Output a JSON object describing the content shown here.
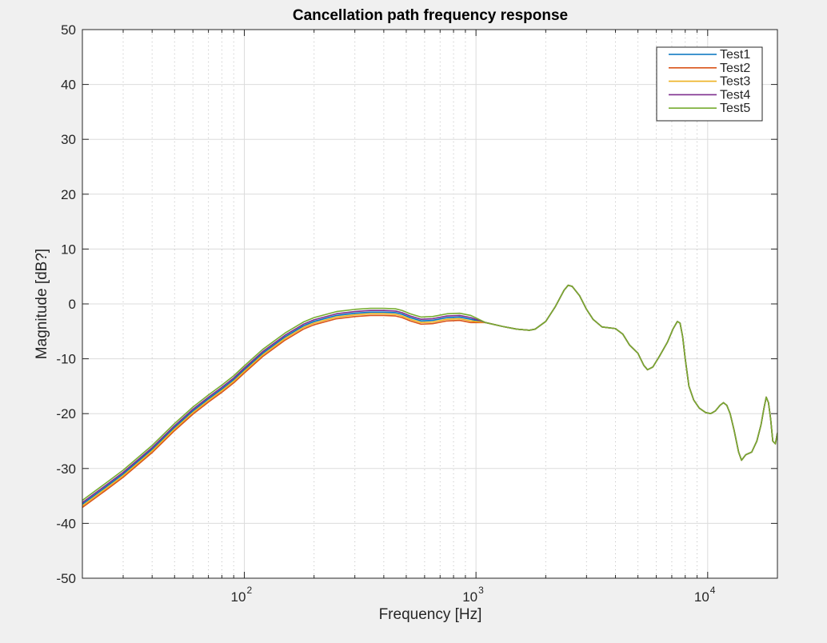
{
  "colors": {
    "figure_bg": "#f0f0f0",
    "axes_bg": "#ffffff",
    "axis": "#262626",
    "grid_major": "#dcdcdc",
    "grid_minor": "#bdbdbd"
  },
  "chart_data": {
    "type": "line",
    "title": "Cancellation path frequency response",
    "xlabel": "Frequency [Hz]",
    "ylabel": "Magnitude [dB?]",
    "xscale": "log",
    "xlim": [
      20,
      20000
    ],
    "ylim": [
      -50,
      50
    ],
    "yticks": [
      -50,
      -40,
      -30,
      -20,
      -10,
      0,
      10,
      20,
      30,
      40,
      50
    ],
    "ytick_labels": [
      "-50",
      "-40",
      "-30",
      "-20",
      "-10",
      "0",
      "10",
      "20",
      "30",
      "40",
      "50"
    ],
    "xticks": [
      100,
      1000,
      10000
    ],
    "xtick_bases": [
      "10",
      "10",
      "10"
    ],
    "xtick_exponents": [
      "2",
      "3",
      "4"
    ],
    "grid": true,
    "minor_grid": true,
    "legend_position": "top-right",
    "x": [
      20,
      25,
      30,
      40,
      50,
      60,
      70,
      80,
      90,
      100,
      120,
      150,
      180,
      200,
      250,
      300,
      350,
      400,
      450,
      480,
      520,
      580,
      650,
      750,
      850,
      950,
      1100,
      1300,
      1500,
      1700,
      1800,
      2000,
      2200,
      2400,
      2500,
      2600,
      2800,
      3000,
      3200,
      3500,
      4000,
      4300,
      4600,
      5000,
      5300,
      5500,
      5800,
      6200,
      6700,
      7100,
      7400,
      7600,
      7800,
      8000,
      8300,
      8700,
      9200,
      9800,
      10300,
      10800,
      11300,
      11700,
      12100,
      12500,
      13000,
      13600,
      14000,
      14600,
      15500,
      16300,
      17000,
      17500,
      17900,
      18300,
      18700,
      19100,
      19600,
      20000
    ],
    "series": [
      {
        "name": "Test1",
        "color": "#0072bd",
        "offset": 0.0,
        "y": [
          -36.5,
          -33.5,
          -31,
          -26.5,
          -22.5,
          -19.5,
          -17.3,
          -15.5,
          -13.8,
          -12,
          -9,
          -6,
          -4,
          -3.2,
          -2.1,
          -1.7,
          -1.5,
          -1.5,
          -1.6,
          -1.9,
          -2.5,
          -3.1,
          -3,
          -2.5,
          -2.4,
          -2.8,
          -3.4,
          -4.1,
          -4.6,
          -4.8,
          -4.6,
          -3.2,
          -0.5,
          2.5,
          3.4,
          3.2,
          1.5,
          -1,
          -2.8,
          -4.2,
          -4.5,
          -5.5,
          -7.5,
          -9,
          -11.2,
          -12,
          -11.5,
          -9.5,
          -7,
          -4.5,
          -3.2,
          -3.5,
          -6,
          -10,
          -15,
          -17.5,
          -19,
          -19.8,
          -20,
          -19.5,
          -18.5,
          -18,
          -18.5,
          -20,
          -23,
          -27,
          -28.5,
          -27.5,
          -27,
          -25,
          -22,
          -19,
          -17,
          -18,
          -21,
          -25,
          -25.5,
          -23.5
        ]
      },
      {
        "name": "Test2",
        "color": "#d95319",
        "offset": -0.6,
        "y": [
          -36.5,
          -33.5,
          -31,
          -26.5,
          -22.5,
          -19.5,
          -17.3,
          -15.5,
          -13.8,
          -12,
          -9,
          -6,
          -4,
          -3.2,
          -2.1,
          -1.7,
          -1.5,
          -1.5,
          -1.6,
          -1.9,
          -2.5,
          -3.1,
          -3,
          -2.5,
          -2.4,
          -2.8,
          -3.4,
          -4.1,
          -4.6,
          -4.8,
          -4.6,
          -3.2,
          -0.5,
          2.5,
          3.4,
          3.2,
          1.5,
          -1,
          -2.8,
          -4.2,
          -4.5,
          -5.5,
          -7.5,
          -9,
          -11.2,
          -12,
          -11.5,
          -9.5,
          -7,
          -4.5,
          -3.2,
          -3.5,
          -6,
          -10,
          -15,
          -17.5,
          -19,
          -19.8,
          -20,
          -19.5,
          -18.5,
          -18,
          -18.5,
          -20,
          -23,
          -27,
          -28.5,
          -27.5,
          -27,
          -25,
          -22,
          -19,
          -17,
          -18,
          -21,
          -25,
          -25.5,
          -23.5
        ]
      },
      {
        "name": "Test3",
        "color": "#edb120",
        "offset": -0.3,
        "y": [
          -36.5,
          -33.5,
          -31,
          -26.5,
          -22.5,
          -19.5,
          -17.3,
          -15.5,
          -13.8,
          -12,
          -9,
          -6,
          -4,
          -3.2,
          -2.1,
          -1.7,
          -1.5,
          -1.5,
          -1.6,
          -1.9,
          -2.5,
          -3.1,
          -3,
          -2.5,
          -2.4,
          -2.8,
          -3.4,
          -4.1,
          -4.6,
          -4.8,
          -4.6,
          -3.2,
          -0.5,
          2.5,
          3.4,
          3.2,
          1.5,
          -1,
          -2.8,
          -4.2,
          -4.5,
          -5.5,
          -7.5,
          -9,
          -11.2,
          -12,
          -11.5,
          -9.5,
          -7,
          -4.5,
          -3.2,
          -3.5,
          -6,
          -10,
          -15,
          -17.5,
          -19,
          -19.8,
          -20,
          -19.5,
          -18.5,
          -18,
          -18.5,
          -20,
          -23,
          -27,
          -28.5,
          -27.5,
          -27,
          -25,
          -22,
          -19,
          -17,
          -18,
          -21,
          -25,
          -25.5,
          -23.5
        ]
      },
      {
        "name": "Test4",
        "color": "#7e2f8e",
        "offset": 0.3,
        "y": [
          -36.5,
          -33.5,
          -31,
          -26.5,
          -22.5,
          -19.5,
          -17.3,
          -15.5,
          -13.8,
          -12,
          -9,
          -6,
          -4,
          -3.2,
          -2.1,
          -1.7,
          -1.5,
          -1.5,
          -1.6,
          -1.9,
          -2.5,
          -3.1,
          -3,
          -2.5,
          -2.4,
          -2.8,
          -3.4,
          -4.1,
          -4.6,
          -4.8,
          -4.6,
          -3.2,
          -0.5,
          2.5,
          3.4,
          3.2,
          1.5,
          -1,
          -2.8,
          -4.2,
          -4.5,
          -5.5,
          -7.5,
          -9,
          -11.2,
          -12,
          -11.5,
          -9.5,
          -7,
          -4.5,
          -3.2,
          -3.5,
          -6,
          -10,
          -15,
          -17.5,
          -19,
          -19.8,
          -20,
          -19.5,
          -18.5,
          -18,
          -18.5,
          -20,
          -23,
          -27,
          -28.5,
          -27.5,
          -27,
          -25,
          -22,
          -19,
          -17,
          -18,
          -21,
          -25,
          -25.5,
          -23.5
        ]
      },
      {
        "name": "Test5",
        "color": "#77ac30",
        "offset": 0.7,
        "y": [
          -36.5,
          -33.5,
          -31,
          -26.5,
          -22.5,
          -19.5,
          -17.3,
          -15.5,
          -13.8,
          -12,
          -9,
          -6,
          -4,
          -3.2,
          -2.1,
          -1.7,
          -1.5,
          -1.5,
          -1.6,
          -1.9,
          -2.5,
          -3.1,
          -3,
          -2.5,
          -2.4,
          -2.8,
          -3.4,
          -4.1,
          -4.6,
          -4.8,
          -4.6,
          -3.2,
          -0.5,
          2.5,
          3.4,
          3.2,
          1.5,
          -1,
          -2.8,
          -4.2,
          -4.5,
          -5.5,
          -7.5,
          -9,
          -11.2,
          -12,
          -11.5,
          -9.5,
          -7,
          -4.5,
          -3.2,
          -3.5,
          -6,
          -10,
          -15,
          -17.5,
          -19,
          -19.8,
          -20,
          -19.5,
          -18.5,
          -18,
          -18.5,
          -20,
          -23,
          -27,
          -28.5,
          -27.5,
          -27,
          -25,
          -22,
          -19,
          -17,
          -18,
          -21,
          -25,
          -25.5,
          -23.5
        ]
      }
    ]
  }
}
